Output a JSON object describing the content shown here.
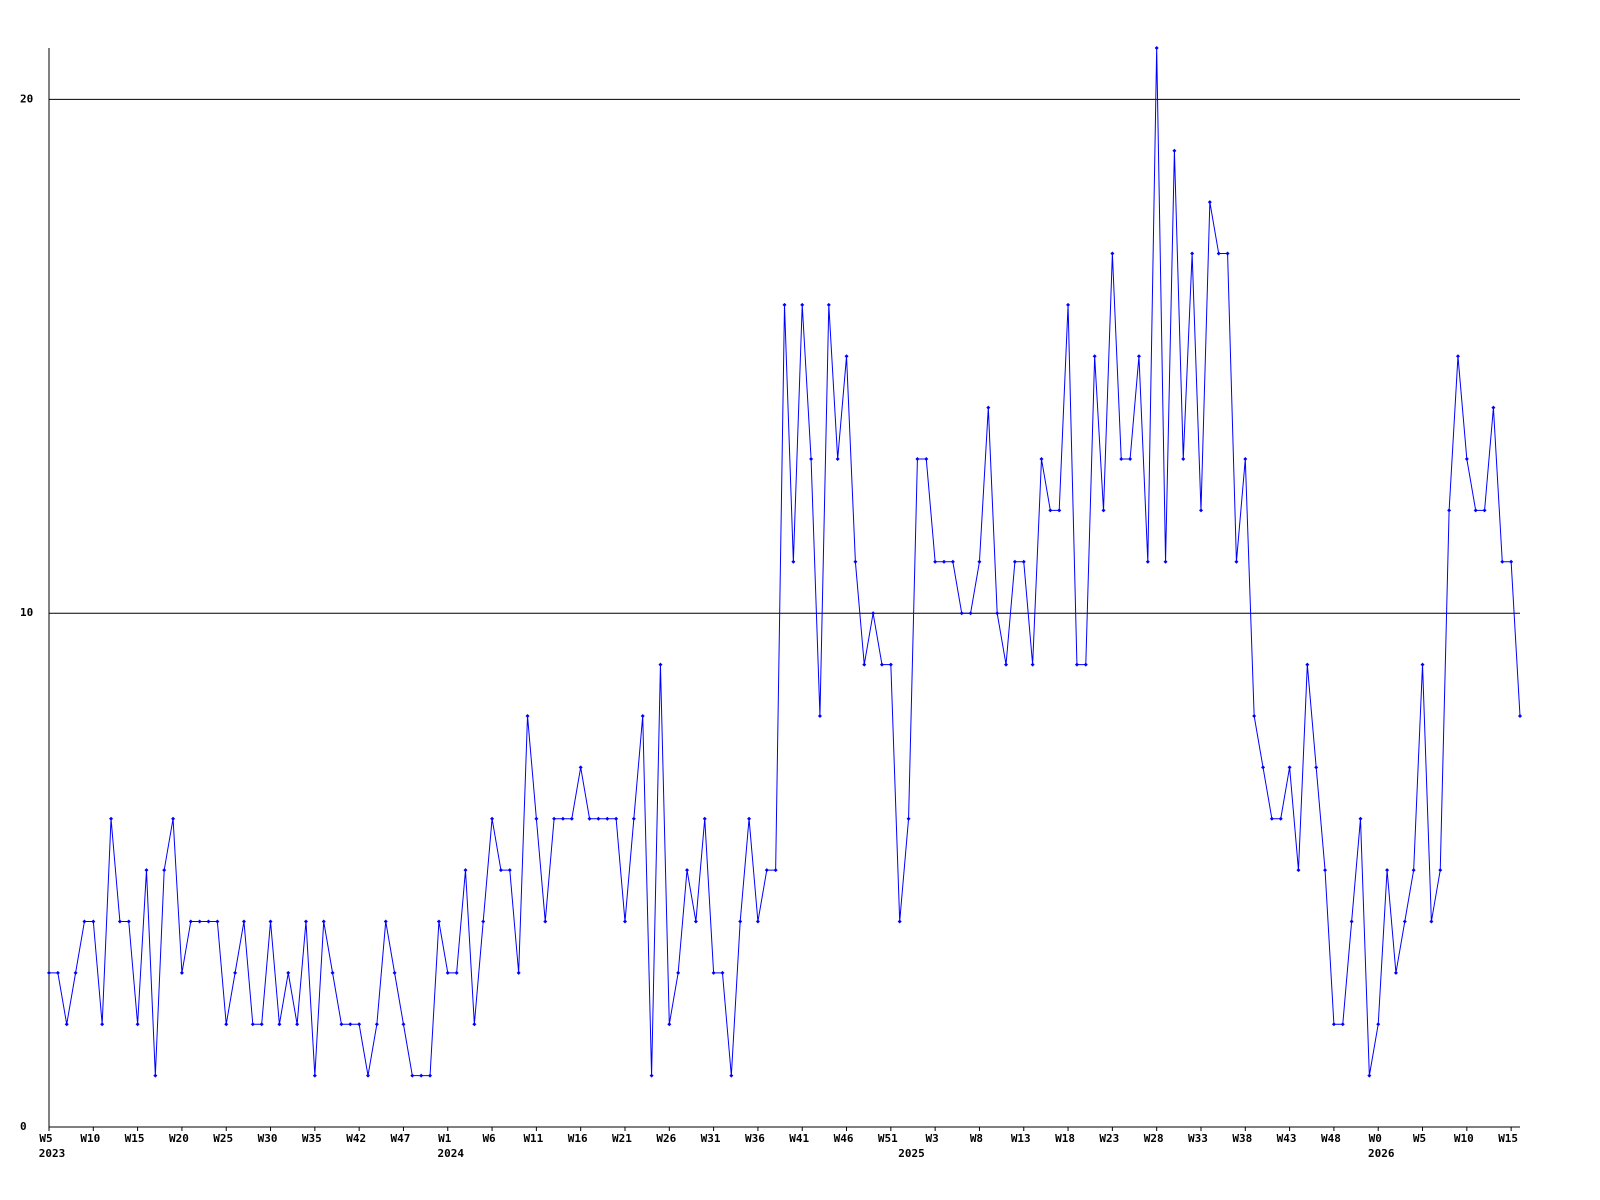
{
  "chart_data": {
    "type": "line",
    "x": [
      0,
      1,
      2,
      3,
      4,
      5,
      6,
      7,
      8,
      9,
      10,
      11,
      12,
      13,
      14,
      15,
      16,
      17,
      18,
      19,
      20,
      21,
      22,
      23,
      24,
      25,
      26,
      27,
      28,
      29,
      30,
      31,
      32,
      33,
      34,
      35,
      36,
      37,
      38,
      39,
      40,
      41,
      42,
      43,
      44,
      45,
      46,
      47,
      48,
      49,
      50,
      51,
      52,
      53,
      54,
      55,
      56,
      57,
      58,
      59,
      60,
      61,
      62,
      63,
      64,
      65,
      66,
      67,
      68,
      69,
      70,
      71,
      72,
      73,
      74,
      75,
      76,
      77,
      78,
      79,
      80,
      81,
      82,
      83,
      84,
      85,
      86,
      87,
      88,
      89,
      90,
      91,
      92,
      93,
      94,
      95,
      96,
      97,
      98,
      99,
      100,
      101,
      102,
      103,
      104,
      105,
      106,
      107,
      108,
      109,
      110,
      111,
      112,
      113,
      114,
      115,
      116,
      117,
      118,
      119,
      120,
      121,
      122,
      123,
      124,
      125,
      126,
      127,
      128,
      129,
      130,
      131,
      132,
      133,
      134,
      135,
      136,
      137,
      138,
      139,
      140,
      141,
      142,
      143,
      144,
      145,
      146,
      147,
      148,
      149,
      150,
      151,
      152,
      153,
      154,
      155,
      156,
      157,
      158,
      159,
      160,
      161,
      162,
      163,
      164,
      165,
      166
    ],
    "series": [
      {
        "color": "#0000ff",
        "values": [
          3,
          3,
          2,
          3,
          4,
          4,
          2,
          6,
          4,
          4,
          2,
          5,
          1,
          5,
          6,
          3,
          4,
          4,
          4,
          4,
          2,
          3,
          4,
          2,
          2,
          4,
          2,
          3,
          2,
          4,
          1,
          4,
          3,
          2,
          2,
          2,
          1,
          2,
          4,
          3,
          2,
          1,
          1,
          1,
          4,
          3,
          3,
          5,
          2,
          4,
          6,
          5,
          5,
          3,
          8,
          6,
          4,
          6,
          6,
          6,
          7,
          6,
          6,
          6,
          6,
          4,
          6,
          8,
          1,
          9,
          2,
          3,
          5,
          4,
          6,
          3,
          3,
          1,
          4,
          6,
          4,
          5,
          5,
          16,
          11,
          16,
          13,
          8,
          16,
          13,
          15,
          11,
          9,
          10,
          9,
          9,
          4,
          6,
          13,
          13,
          11,
          11,
          11,
          10,
          10,
          11,
          14,
          10,
          9,
          11,
          11,
          9,
          13,
          12,
          12,
          16,
          9,
          9,
          15,
          12,
          17,
          13,
          13,
          15,
          11,
          21,
          11,
          19,
          13,
          17,
          12,
          18,
          17,
          17,
          11,
          13,
          8,
          7,
          6,
          6,
          7,
          5,
          9,
          7,
          5,
          2,
          2,
          4,
          6,
          1,
          2,
          5,
          3,
          4,
          5,
          9,
          4,
          5,
          12,
          15,
          13,
          12,
          12,
          14,
          11,
          11,
          8
        ]
      }
    ],
    "xlim": [
      0,
      166
    ],
    "xticks": [
      {
        "value": 0,
        "label": "W5"
      },
      {
        "value": 5,
        "label": "W10"
      },
      {
        "value": 10,
        "label": "W15"
      },
      {
        "value": 15,
        "label": "W20"
      },
      {
        "value": 20,
        "label": "W25"
      },
      {
        "value": 25,
        "label": "W30"
      },
      {
        "value": 30,
        "label": "W35"
      },
      {
        "value": 35,
        "label": "W42"
      },
      {
        "value": 40,
        "label": "W47"
      },
      {
        "value": 45,
        "label": "W1"
      },
      {
        "value": 50,
        "label": "W6"
      },
      {
        "value": 55,
        "label": "W11"
      },
      {
        "value": 60,
        "label": "W16"
      },
      {
        "value": 65,
        "label": "W21"
      },
      {
        "value": 70,
        "label": "W26"
      },
      {
        "value": 75,
        "label": "W31"
      },
      {
        "value": 80,
        "label": "W36"
      },
      {
        "value": 85,
        "label": "W41"
      },
      {
        "value": 90,
        "label": "W46"
      },
      {
        "value": 95,
        "label": "W51"
      },
      {
        "value": 100,
        "label": "W3"
      },
      {
        "value": 105,
        "label": "W8"
      },
      {
        "value": 110,
        "label": "W13"
      },
      {
        "value": 115,
        "label": "W18"
      },
      {
        "value": 120,
        "label": "W23"
      },
      {
        "value": 125,
        "label": "W28"
      },
      {
        "value": 130,
        "label": "W33"
      },
      {
        "value": 135,
        "label": "W38"
      },
      {
        "value": 140,
        "label": "W43"
      },
      {
        "value": 145,
        "label": "W48"
      },
      {
        "value": 150,
        "label": "W0"
      },
      {
        "value": 155,
        "label": "W5"
      },
      {
        "value": 160,
        "label": "W10"
      },
      {
        "value": 165,
        "label": "W15"
      }
    ],
    "year_labels": [
      {
        "value": 0,
        "label": "2023"
      },
      {
        "value": 45,
        "label": "2024"
      },
      {
        "value": 97,
        "label": "2025"
      },
      {
        "value": 150,
        "label": "2026"
      }
    ],
    "ylim": [
      0,
      21
    ],
    "yticks": [
      0,
      10,
      20
    ],
    "grid": true
  }
}
